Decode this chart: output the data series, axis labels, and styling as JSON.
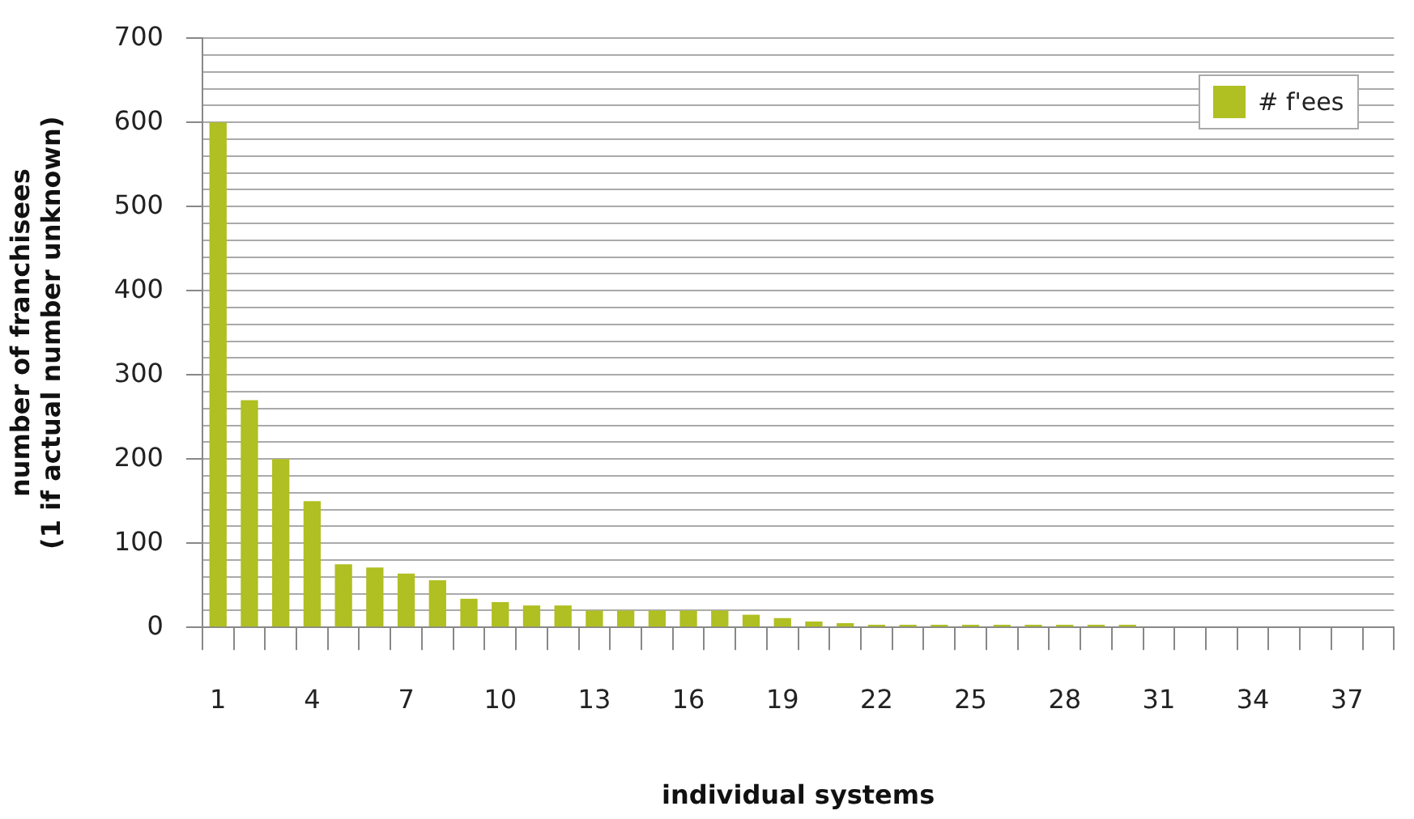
{
  "chart_data": {
    "type": "bar",
    "xlabel": "individual systems",
    "ylabel": "number of franchisees\n(1 if actual number unknown)",
    "categories": [
      "1",
      null,
      null,
      "4",
      null,
      null,
      "7",
      null,
      null,
      "10",
      null,
      null,
      "13",
      null,
      null,
      "16",
      null,
      null,
      "19",
      null,
      null,
      "22",
      null,
      null,
      "25",
      null,
      null,
      "28",
      null,
      null,
      "31",
      null,
      null,
      "34",
      null,
      null,
      "37",
      null
    ],
    "series": [
      {
        "name": "# f'ees",
        "color": "#b0bf21",
        "values": [
          600,
          270,
          200,
          150,
          75,
          71,
          64,
          56,
          34,
          30,
          26,
          26,
          20,
          20,
          20,
          20,
          20,
          15,
          11,
          7,
          5,
          3,
          3,
          3,
          3,
          3,
          3,
          3,
          3,
          3,
          0,
          0,
          0,
          0,
          0,
          0,
          0,
          0
        ]
      }
    ],
    "ylim": [
      0,
      700
    ],
    "yticks": [
      0,
      {
        "value": 20,
        "label": null
      },
      {
        "value": 40,
        "label": null
      },
      {
        "value": 60,
        "label": null
      },
      {
        "value": 80,
        "label": null
      },
      100,
      {
        "value": 120,
        "label": null
      },
      {
        "value": 140,
        "label": null
      },
      {
        "value": 160,
        "label": null
      },
      {
        "value": 180,
        "label": null
      },
      200,
      {
        "value": 220,
        "label": null
      },
      {
        "value": 240,
        "label": null
      },
      {
        "value": 260,
        "label": null
      },
      {
        "value": 280,
        "label": null
      },
      300,
      {
        "value": 320,
        "label": null
      },
      {
        "value": 340,
        "label": null
      },
      {
        "value": 360,
        "label": null
      },
      {
        "value": 380,
        "label": null
      },
      400,
      {
        "value": 420,
        "label": null
      },
      {
        "value": 440,
        "label": null
      },
      {
        "value": 460,
        "label": null
      },
      {
        "value": 480,
        "label": null
      },
      500,
      {
        "value": 520,
        "label": null
      },
      {
        "value": 540,
        "label": null
      },
      {
        "value": 560,
        "label": null
      },
      {
        "value": 580,
        "label": null
      },
      600,
      {
        "value": 620,
        "label": null
      },
      {
        "value": 640,
        "label": null
      },
      {
        "value": 660,
        "label": null
      },
      {
        "value": 680,
        "label": null
      },
      700
    ],
    "grid": "y",
    "legend": "top right"
  }
}
